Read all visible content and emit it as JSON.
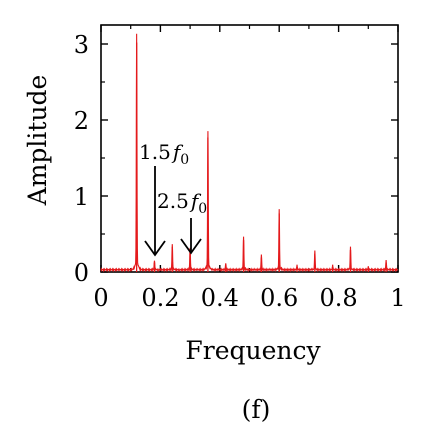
{
  "chart_data": {
    "type": "line",
    "title": "",
    "xlabel": "Frequency",
    "ylabel": "Amplitude",
    "panel_label": "(f)",
    "xlim": [
      0,
      1
    ],
    "ylim": [
      0,
      3.25
    ],
    "x_ticks": [
      0,
      0.2,
      0.4,
      0.6,
      0.8,
      1
    ],
    "x_tick_labels": [
      "0",
      "0.2",
      "0.4",
      "0.6",
      "0.8",
      "1"
    ],
    "y_ticks": [
      0,
      1,
      2,
      3
    ],
    "y_tick_labels": [
      "0",
      "1",
      "2",
      "3"
    ],
    "grid": false,
    "line_color": "#e41a1c",
    "series": [
      {
        "peaks": [
          {
            "x": 0.12,
            "y": 3.02
          },
          {
            "x": 0.18,
            "y": 0.12
          },
          {
            "x": 0.24,
            "y": 0.33
          },
          {
            "x": 0.3,
            "y": 0.28
          },
          {
            "x": 0.36,
            "y": 1.77
          },
          {
            "x": 0.42,
            "y": 0.08
          },
          {
            "x": 0.48,
            "y": 0.42
          },
          {
            "x": 0.54,
            "y": 0.19
          },
          {
            "x": 0.6,
            "y": 0.77
          },
          {
            "x": 0.66,
            "y": 0.06
          },
          {
            "x": 0.72,
            "y": 0.24
          },
          {
            "x": 0.78,
            "y": 0.06
          },
          {
            "x": 0.84,
            "y": 0.29
          },
          {
            "x": 0.9,
            "y": 0.04
          },
          {
            "x": 0.96,
            "y": 0.12
          }
        ]
      }
    ],
    "annotations": [
      {
        "text": "1.5",
        "symbol": "f",
        "subscript": "0",
        "x": 0.18
      },
      {
        "text": "2.5",
        "symbol": "f",
        "subscript": "0",
        "x": 0.3
      }
    ]
  }
}
